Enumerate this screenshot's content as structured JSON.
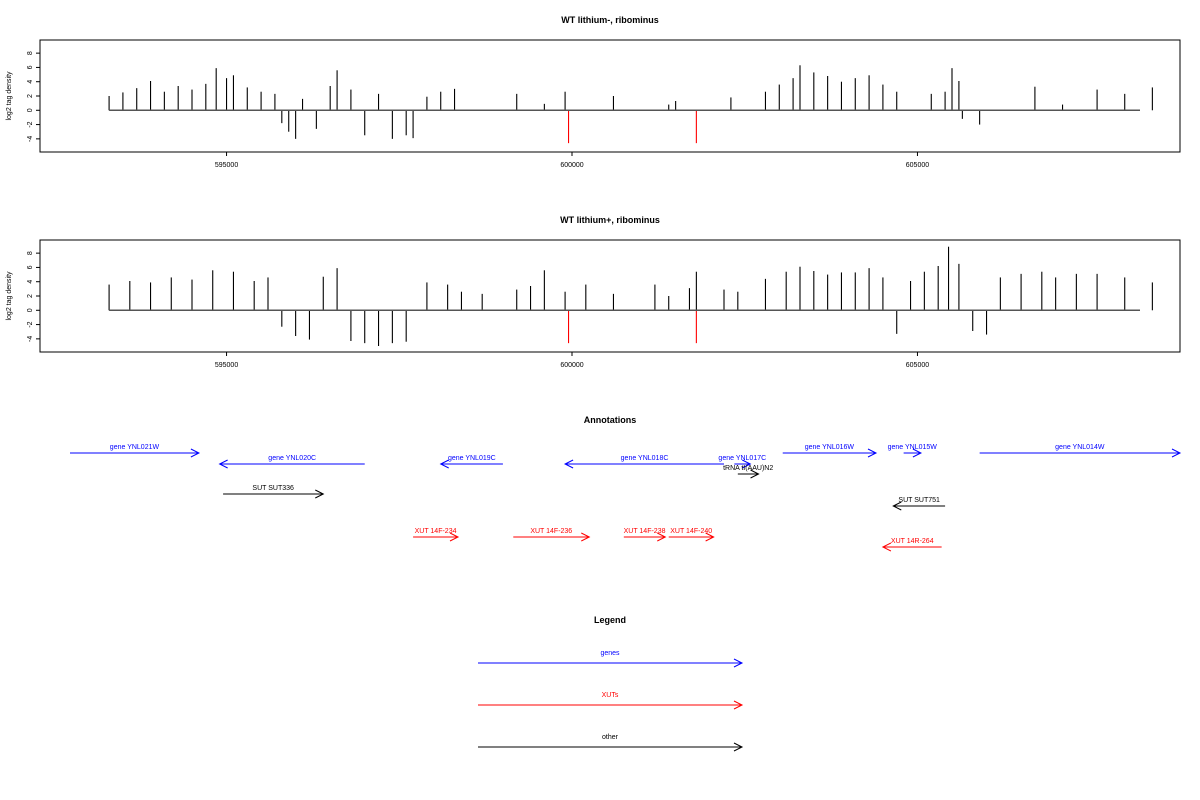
{
  "chart_data": [
    {
      "type": "bar",
      "title": "WT lithium-, ribominus",
      "ylabel": "log2 tag density",
      "xlabel": "",
      "xlim": [
        592300,
        608800
      ],
      "ylim": [
        -5,
        9
      ],
      "xticks": [
        595000,
        600000,
        605000
      ],
      "yticks": [
        -4,
        -2,
        0,
        2,
        4,
        6,
        8
      ],
      "grid": false,
      "series": [
        {
          "color": "#000000",
          "bars": [
            [
              593300,
              2.0
            ],
            [
              593500,
              2.5
            ],
            [
              593700,
              3.1
            ],
            [
              593900,
              4.1
            ],
            [
              594100,
              2.6
            ],
            [
              594300,
              3.4
            ],
            [
              594500,
              2.9
            ],
            [
              594700,
              3.7
            ],
            [
              594850,
              5.9
            ],
            [
              595000,
              4.5
            ],
            [
              595100,
              4.9
            ],
            [
              595300,
              3.2
            ],
            [
              595500,
              2.6
            ],
            [
              595700,
              2.3
            ],
            [
              595800,
              -1.8
            ],
            [
              595900,
              -3.0
            ],
            [
              596000,
              -4.0
            ],
            [
              596100,
              1.6
            ],
            [
              596300,
              -2.6
            ],
            [
              596500,
              3.4
            ],
            [
              596600,
              5.6
            ],
            [
              596800,
              2.9
            ],
            [
              597000,
              -3.5
            ],
            [
              597200,
              2.3
            ],
            [
              597400,
              -4.0
            ],
            [
              597600,
              -3.5
            ],
            [
              597700,
              -3.9
            ],
            [
              597900,
              1.9
            ],
            [
              598100,
              2.6
            ],
            [
              598300,
              3.0
            ],
            [
              599200,
              2.3
            ],
            [
              599600,
              0.9
            ],
            [
              599900,
              2.6
            ],
            [
              600600,
              2.0
            ],
            [
              601400,
              0.8
            ],
            [
              601500,
              1.3
            ],
            [
              602300,
              1.8
            ],
            [
              602800,
              2.6
            ],
            [
              603000,
              3.6
            ],
            [
              603200,
              4.5
            ],
            [
              603300,
              6.3
            ],
            [
              603500,
              5.3
            ],
            [
              603700,
              4.8
            ],
            [
              603900,
              4.0
            ],
            [
              604100,
              4.5
            ],
            [
              604300,
              4.9
            ],
            [
              604500,
              3.6
            ],
            [
              604700,
              2.6
            ],
            [
              605200,
              2.3
            ],
            [
              605400,
              2.6
            ],
            [
              605500,
              5.9
            ],
            [
              605600,
              4.1
            ],
            [
              605650,
              -1.2
            ],
            [
              605900,
              -2.0
            ],
            [
              606700,
              3.3
            ],
            [
              607100,
              0.8
            ],
            [
              607600,
              2.9
            ],
            [
              608000,
              2.3
            ],
            [
              608400,
              3.2
            ]
          ]
        },
        {
          "color": "#ff0000",
          "bars": [
            [
              599950,
              -4.6
            ],
            [
              601800,
              -4.6
            ]
          ]
        }
      ]
    },
    {
      "type": "bar",
      "title": "WT lithium+, ribominus",
      "ylabel": "log2 tag density",
      "xlabel": "",
      "xlim": [
        592300,
        608800
      ],
      "ylim": [
        -5,
        9
      ],
      "xticks": [
        595000,
        600000,
        605000
      ],
      "yticks": [
        -4,
        -2,
        0,
        2,
        4,
        6,
        8
      ],
      "grid": false,
      "series": [
        {
          "color": "#000000",
          "bars": [
            [
              593300,
              3.6
            ],
            [
              593600,
              4.1
            ],
            [
              593900,
              3.9
            ],
            [
              594200,
              4.6
            ],
            [
              594500,
              4.3
            ],
            [
              594800,
              5.6
            ],
            [
              595100,
              5.4
            ],
            [
              595400,
              4.1
            ],
            [
              595600,
              4.6
            ],
            [
              595800,
              -2.3
            ],
            [
              596000,
              -3.6
            ],
            [
              596200,
              -4.1
            ],
            [
              596400,
              4.7
            ],
            [
              596600,
              5.9
            ],
            [
              596800,
              -4.3
            ],
            [
              597000,
              -4.6
            ],
            [
              597200,
              -5.0
            ],
            [
              597400,
              -4.6
            ],
            [
              597600,
              -4.4
            ],
            [
              597900,
              3.9
            ],
            [
              598200,
              3.6
            ],
            [
              598400,
              2.6
            ],
            [
              598700,
              2.3
            ],
            [
              599200,
              2.9
            ],
            [
              599400,
              3.4
            ],
            [
              599600,
              5.6
            ],
            [
              599900,
              2.6
            ],
            [
              600200,
              3.6
            ],
            [
              600600,
              2.3
            ],
            [
              601200,
              3.6
            ],
            [
              601400,
              2.0
            ],
            [
              601700,
              3.1
            ],
            [
              601800,
              5.4
            ],
            [
              602200,
              2.9
            ],
            [
              602400,
              2.6
            ],
            [
              602800,
              4.4
            ],
            [
              603100,
              5.4
            ],
            [
              603300,
              6.1
            ],
            [
              603500,
              5.5
            ],
            [
              603700,
              5.0
            ],
            [
              603900,
              5.3
            ],
            [
              604100,
              5.3
            ],
            [
              604300,
              5.9
            ],
            [
              604500,
              4.6
            ],
            [
              604700,
              -3.3
            ],
            [
              604900,
              4.1
            ],
            [
              605100,
              5.4
            ],
            [
              605300,
              6.2
            ],
            [
              605450,
              8.9
            ],
            [
              605600,
              6.5
            ],
            [
              605800,
              -2.9
            ],
            [
              606000,
              -3.4
            ],
            [
              606200,
              4.6
            ],
            [
              606500,
              5.1
            ],
            [
              606800,
              5.4
            ],
            [
              607000,
              4.6
            ],
            [
              607300,
              5.1
            ],
            [
              607600,
              5.1
            ],
            [
              608000,
              4.6
            ],
            [
              608400,
              3.9
            ]
          ]
        },
        {
          "color": "#ff0000",
          "bars": [
            [
              599950,
              -4.6
            ],
            [
              601800,
              -4.6
            ]
          ]
        }
      ]
    },
    {
      "type": "annotation_track",
      "title": "Annotations",
      "features": [
        {
          "label": "gene YNL021W",
          "start": 592200,
          "end": 594600,
          "strand": "+",
          "kind": "gene",
          "row": 0
        },
        {
          "label": "gene YNL020C",
          "start": 594900,
          "end": 597000,
          "strand": "-",
          "kind": "gene",
          "row": 1
        },
        {
          "label": "gene YNL019C",
          "start": 598100,
          "end": 599000,
          "strand": "-",
          "kind": "gene",
          "row": 1
        },
        {
          "label": "gene YNL018C",
          "start": 599900,
          "end": 602200,
          "strand": "-",
          "kind": "gene",
          "row": 1
        },
        {
          "label": "gene YNL017C",
          "start": 602350,
          "end": 602580,
          "strand": "+",
          "kind": "gene",
          "row": 1
        },
        {
          "label": "tRNA tI(AAU)N2",
          "start": 602400,
          "end": 602700,
          "strand": "+",
          "kind": "other",
          "row": 2
        },
        {
          "label": "gene YNL016W",
          "start": 603050,
          "end": 604400,
          "strand": "+",
          "kind": "gene",
          "row": 0
        },
        {
          "label": "gene YNL015W",
          "start": 604800,
          "end": 605050,
          "strand": "+",
          "kind": "gene",
          "row": 0
        },
        {
          "label": "gene YNL014W",
          "start": 605900,
          "end": 608800,
          "strand": "+",
          "kind": "gene",
          "row": 0
        },
        {
          "label": "SUT SUT336",
          "start": 594950,
          "end": 596400,
          "strand": "+",
          "kind": "other",
          "row": 3
        },
        {
          "label": "SUT SUT751",
          "start": 604650,
          "end": 605400,
          "strand": "-",
          "kind": "other",
          "row": 4
        },
        {
          "label": "XUT 14F-234",
          "start": 597700,
          "end": 598350,
          "strand": "+",
          "kind": "xut",
          "row": 5
        },
        {
          "label": "XUT 14F-236",
          "start": 599150,
          "end": 600250,
          "strand": "+",
          "kind": "xut",
          "row": 5
        },
        {
          "label": "XUT 14F-238",
          "start": 600750,
          "end": 601350,
          "strand": "+",
          "kind": "xut",
          "row": 5
        },
        {
          "label": "XUT 14F-240",
          "start": 601400,
          "end": 602050,
          "strand": "+",
          "kind": "xut",
          "row": 5
        },
        {
          "label": "XUT 14R-264",
          "start": 604500,
          "end": 605350,
          "strand": "-",
          "kind": "xut",
          "row": 6
        }
      ]
    },
    {
      "type": "legend",
      "title": "Legend",
      "entries": [
        {
          "label": "genes",
          "color": "#0000ff"
        },
        {
          "label": "XUTs",
          "color": "#ff0000"
        },
        {
          "label": "other",
          "color": "#000000"
        }
      ]
    }
  ]
}
